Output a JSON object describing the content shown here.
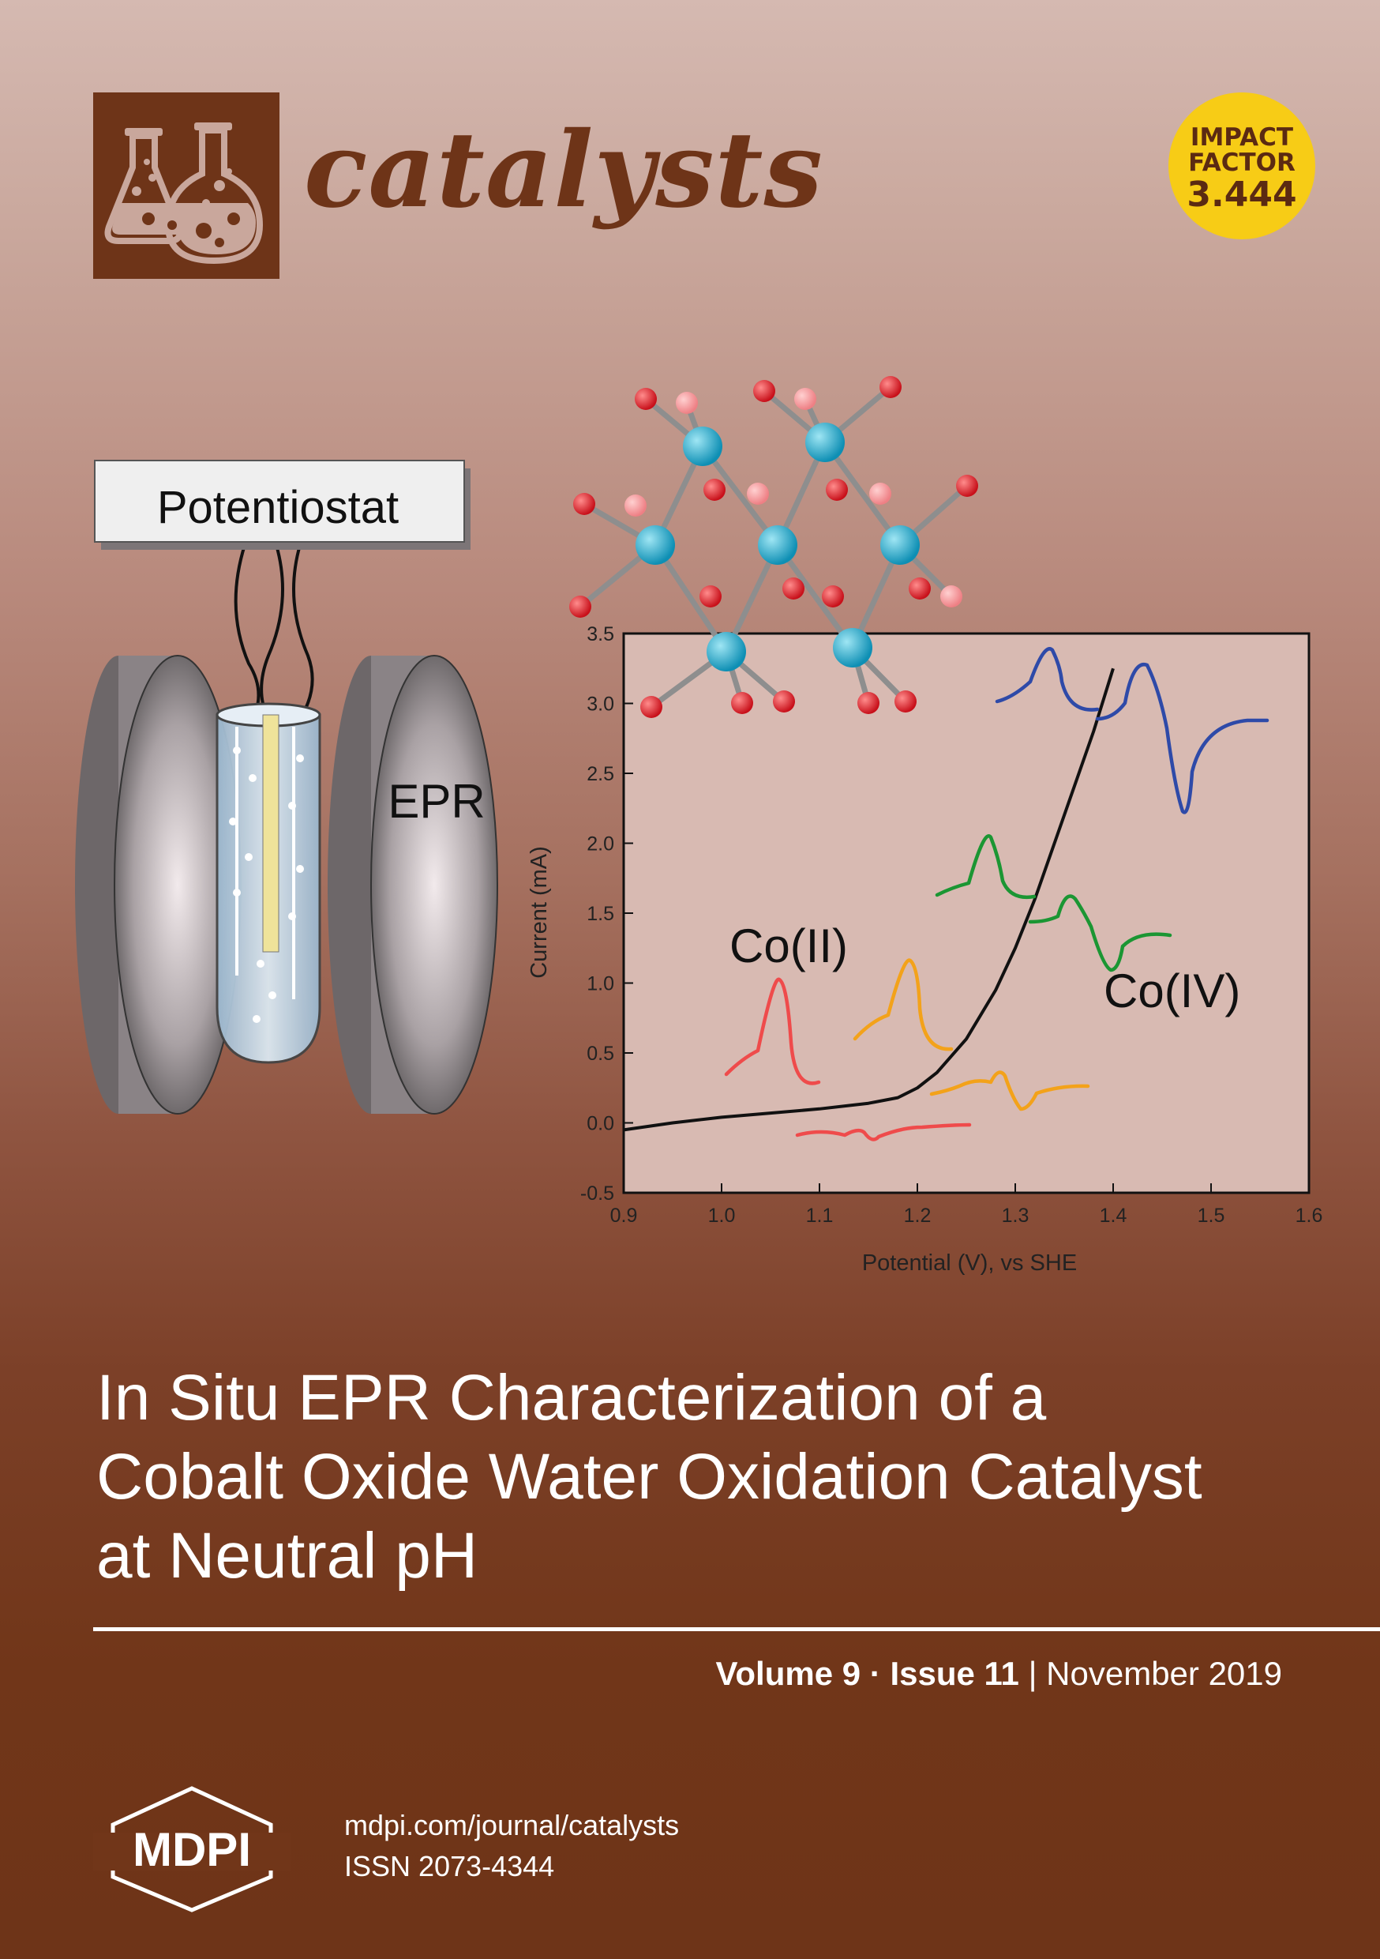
{
  "journal": {
    "name": "catalysts",
    "impact": {
      "line1": "IMPACT",
      "line2": "FACTOR",
      "value": "3.444"
    }
  },
  "illustration": {
    "potentiostat_label": "Potentiostat",
    "epr_label": "EPR",
    "co2_label": "Co(II)",
    "co4_label": "Co(IV)"
  },
  "chart_data": {
    "type": "line",
    "xlabel": "Potential (V), vs SHE",
    "ylabel": "Current (mA)",
    "xlim": [
      0.9,
      1.6
    ],
    "ylim": [
      -0.5,
      3.5
    ],
    "x_ticks": [
      "0.9",
      "1.0",
      "1.1",
      "1.2",
      "1.3",
      "1.4",
      "1.5",
      "1.6"
    ],
    "y_ticks": [
      "-0.5",
      "0.0",
      "0.5",
      "1.0",
      "1.5",
      "2.0",
      "2.5",
      "3.0",
      "3.5"
    ],
    "series": [
      {
        "x": [
          0.9,
          0.95,
          1.0,
          1.05,
          1.1,
          1.15,
          1.18,
          1.2,
          1.22,
          1.25,
          1.28,
          1.3,
          1.32,
          1.35,
          1.38,
          1.4
        ],
        "y": [
          -0.05,
          0.0,
          0.04,
          0.07,
          0.1,
          0.14,
          0.18,
          0.25,
          0.36,
          0.6,
          0.95,
          1.25,
          1.6,
          2.2,
          2.8,
          3.25
        ],
        "color": "#111111"
      }
    ],
    "grid": false
  },
  "title": {
    "line1": "In Situ EPR Characterization of a",
    "line2": "Cobalt Oxide Water Oxidation Catalyst",
    "line3": "at Neutral pH"
  },
  "issue": {
    "volume": "Volume 9",
    "separator": " · ",
    "number": "Issue 11",
    "bar": " | ",
    "date": "November 2019"
  },
  "publisher": {
    "name": "MDPI",
    "url": "mdpi.com/journal/catalysts",
    "issn": "ISSN 2073-4344"
  }
}
